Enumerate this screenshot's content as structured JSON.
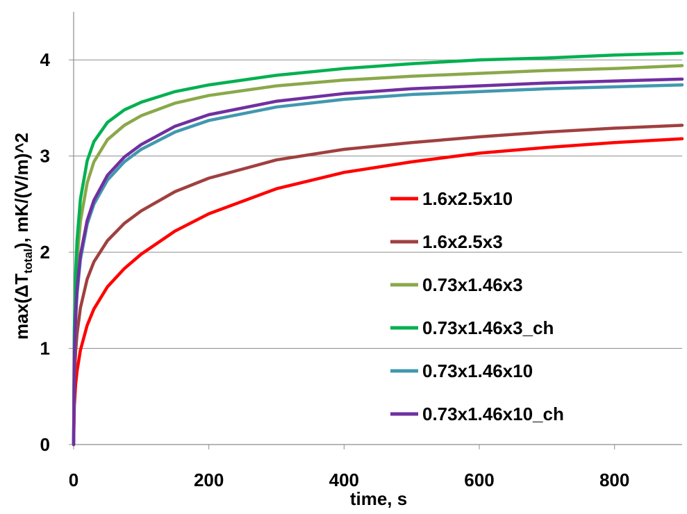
{
  "chart_data": {
    "type": "line",
    "title": "",
    "xlabel": "time, s",
    "ylabel": {
      "prefix": "max(ΔT",
      "subscript": "total",
      "suffix": "), mK/(V/m)^2"
    },
    "xlim": [
      0,
      900
    ],
    "ylim": [
      0,
      4.5
    ],
    "x_ticks": [
      0,
      200,
      400,
      600,
      800
    ],
    "y_ticks": [
      0,
      1,
      2,
      3,
      4
    ],
    "x_tick_labels": [
      "0",
      "200",
      "400",
      "600",
      "800"
    ],
    "y_tick_labels": [
      "0",
      "1",
      "2",
      "3",
      "4"
    ],
    "grid": {
      "horizontal": true,
      "vertical": false
    },
    "legend_position": "center-right",
    "x": [
      0,
      1,
      3,
      5,
      10,
      20,
      30,
      50,
      75,
      100,
      150,
      200,
      300,
      400,
      500,
      600,
      700,
      800,
      900
    ],
    "series": [
      {
        "name": "1.6x2.5x10",
        "color": "#ff0000",
        "values": [
          0,
          0.4,
          0.63,
          0.76,
          0.98,
          1.24,
          1.41,
          1.64,
          1.83,
          1.98,
          2.22,
          2.4,
          2.66,
          2.83,
          2.94,
          3.03,
          3.09,
          3.14,
          3.18
        ]
      },
      {
        "name": "1.6x2.5x3",
        "color": "#a0403f",
        "values": [
          0,
          0.65,
          0.97,
          1.15,
          1.42,
          1.72,
          1.9,
          2.12,
          2.3,
          2.43,
          2.63,
          2.77,
          2.96,
          3.07,
          3.14,
          3.2,
          3.25,
          3.29,
          3.32
        ]
      },
      {
        "name": "0.73x1.46x3",
        "color": "#8aa84a",
        "values": [
          0,
          1.1,
          1.62,
          1.92,
          2.32,
          2.72,
          2.94,
          3.17,
          3.32,
          3.42,
          3.55,
          3.63,
          3.73,
          3.79,
          3.83,
          3.86,
          3.89,
          3.91,
          3.94
        ]
      },
      {
        "name": "0.73x1.46x3_ch",
        "color": "#00b050",
        "values": [
          0,
          1.2,
          1.78,
          2.12,
          2.55,
          2.95,
          3.15,
          3.35,
          3.48,
          3.56,
          3.67,
          3.74,
          3.84,
          3.91,
          3.96,
          4.0,
          4.02,
          4.05,
          4.07
        ]
      },
      {
        "name": "0.73x1.46x10",
        "color": "#4198af",
        "values": [
          0,
          0.85,
          1.3,
          1.56,
          1.92,
          2.29,
          2.5,
          2.75,
          2.94,
          3.07,
          3.25,
          3.37,
          3.51,
          3.59,
          3.64,
          3.67,
          3.7,
          3.72,
          3.74
        ]
      },
      {
        "name": "0.73x1.46x10_ch",
        "color": "#7030a0",
        "values": [
          0,
          0.9,
          1.35,
          1.61,
          1.97,
          2.33,
          2.54,
          2.8,
          2.99,
          3.12,
          3.31,
          3.43,
          3.57,
          3.65,
          3.7,
          3.73,
          3.76,
          3.78,
          3.8
        ]
      }
    ]
  }
}
